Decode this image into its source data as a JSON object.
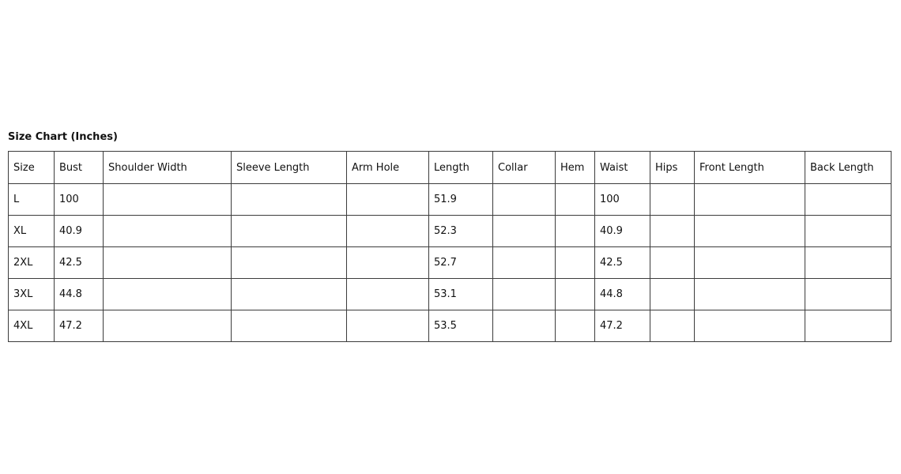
{
  "page": {
    "title": "Size Chart (Inches)"
  },
  "colors": {
    "background": "#ffffff",
    "border": "#3c3c3c",
    "text": "#111111"
  },
  "table": {
    "columns": [
      "Size",
      "Bust",
      "Shoulder Width",
      "Sleeve Length",
      "Arm Hole",
      "Length",
      "Collar",
      "Hem",
      "Waist",
      "Hips",
      "Front Length",
      "Back Length"
    ],
    "rows": [
      [
        "L",
        "100",
        "",
        "",
        "",
        "51.9",
        "",
        "",
        "100",
        "",
        "",
        ""
      ],
      [
        "XL",
        "40.9",
        "",
        "",
        "",
        "52.3",
        "",
        "",
        "40.9",
        "",
        "",
        ""
      ],
      [
        "2XL",
        "42.5",
        "",
        "",
        "",
        "52.7",
        "",
        "",
        "42.5",
        "",
        "",
        ""
      ],
      [
        "3XL",
        "44.8",
        "",
        "",
        "",
        "53.1",
        "",
        "",
        "44.8",
        "",
        "",
        ""
      ],
      [
        "4XL",
        "47.2",
        "",
        "",
        "",
        "53.5",
        "",
        "",
        "47.2",
        "",
        "",
        ""
      ]
    ]
  },
  "chart_data": {
    "type": "table",
    "title": "Size Chart (Inches)",
    "columns": [
      "Size",
      "Bust",
      "Shoulder Width",
      "Sleeve Length",
      "Arm Hole",
      "Length",
      "Collar",
      "Hem",
      "Waist",
      "Hips",
      "Front Length",
      "Back Length"
    ],
    "rows": [
      [
        "L",
        "100",
        "",
        "",
        "",
        "51.9",
        "",
        "",
        "100",
        "",
        "",
        ""
      ],
      [
        "XL",
        "40.9",
        "",
        "",
        "",
        "52.3",
        "",
        "",
        "40.9",
        "",
        "",
        ""
      ],
      [
        "2XL",
        "42.5",
        "",
        "",
        "",
        "52.7",
        "",
        "",
        "42.5",
        "",
        "",
        ""
      ],
      [
        "3XL",
        "44.8",
        "",
        "",
        "",
        "53.1",
        "",
        "",
        "44.8",
        "",
        "",
        ""
      ],
      [
        "4XL",
        "47.2",
        "",
        "",
        "",
        "53.5",
        "",
        "",
        "47.2",
        "",
        "",
        ""
      ]
    ]
  }
}
